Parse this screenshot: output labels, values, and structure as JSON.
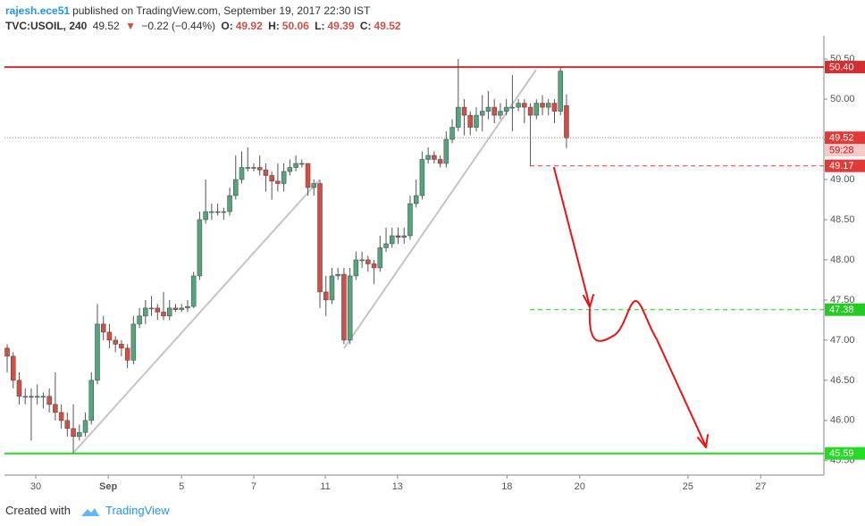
{
  "header": {
    "author": "rajesh.ece51",
    "published": "published on TradingView.com, September 19, 2017 22:30 IST",
    "symbol": "TVC:USOIL, 240",
    "direction": "▼",
    "change": "−0.22 (−0.44%)",
    "o_label": "O:",
    "h_label": "H:",
    "l_label": "L:",
    "c_label": "C:"
  },
  "footer": {
    "created": "Created with",
    "brand": "TradingView"
  },
  "chart_data": {
    "type": "candlestick",
    "x": [
      0,
      1,
      2,
      3,
      4,
      5,
      6,
      7,
      8,
      9,
      10,
      11,
      12,
      13,
      14,
      15,
      16,
      17,
      18,
      19,
      20,
      21,
      22,
      23,
      24,
      25,
      26,
      27,
      28,
      29,
      30,
      31,
      32,
      33,
      34,
      35,
      36,
      37,
      38,
      39,
      40,
      41,
      42,
      43,
      44,
      45,
      46,
      47,
      48,
      49,
      50,
      51,
      52,
      53,
      54,
      55,
      56,
      57,
      58,
      59,
      60,
      61,
      62,
      63,
      64,
      65,
      66,
      67,
      68,
      69,
      70,
      71,
      72,
      73,
      74,
      75,
      76,
      77,
      78,
      79,
      80,
      81,
      82,
      83,
      84,
      85,
      86,
      87,
      88,
      89,
      90,
      91,
      92,
      93
    ],
    "series": [
      {
        "name": "TVC:USOIL, 240",
        "up_color": "#53a57d",
        "down_color": "#d24f45",
        "open": [
          46.9,
          46.8,
          46.5,
          46.3,
          46.3,
          46.3,
          46.3,
          46.3,
          46.2,
          46.1,
          46.0,
          45.9,
          45.8,
          45.85,
          46.0,
          46.5,
          47.2,
          47.1,
          47.0,
          46.95,
          46.9,
          46.75,
          47.2,
          47.3,
          47.4,
          47.4,
          47.35,
          47.3,
          47.4,
          47.38,
          47.4,
          47.42,
          47.8,
          48.5,
          48.6,
          48.6,
          48.6,
          48.6,
          48.8,
          49.0,
          49.15,
          49.15,
          49.15,
          49.12,
          49.05,
          48.98,
          48.95,
          49.1,
          49.15,
          49.2,
          49.2,
          48.9,
          48.95,
          47.6,
          47.5,
          47.8,
          47.82,
          47.0,
          47.8,
          48.0,
          48.0,
          47.95,
          47.9,
          48.15,
          48.2,
          48.3,
          48.28,
          48.3,
          48.7,
          48.8,
          49.25,
          49.3,
          49.25,
          49.2,
          49.5,
          49.65,
          49.9,
          49.8,
          49.65,
          49.8,
          49.85,
          49.9,
          49.8,
          49.85,
          49.9,
          49.9,
          49.95,
          49.9,
          49.8,
          49.95,
          49.9,
          49.95,
          49.85,
          49.92
        ],
        "high": [
          46.95,
          46.85,
          46.6,
          46.4,
          46.4,
          46.45,
          46.35,
          46.4,
          46.6,
          46.2,
          46.1,
          46.2,
          45.95,
          46.1,
          46.6,
          47.45,
          47.3,
          47.2,
          47.05,
          47.0,
          46.95,
          47.3,
          47.4,
          47.5,
          47.55,
          47.45,
          47.6,
          47.5,
          47.45,
          47.45,
          47.5,
          47.85,
          48.6,
          49.0,
          48.7,
          48.7,
          48.65,
          48.9,
          49.3,
          49.35,
          49.4,
          49.2,
          49.3,
          49.2,
          49.1,
          49.2,
          49.2,
          49.25,
          49.3,
          49.25,
          49.2,
          49.0,
          49.0,
          47.8,
          47.9,
          47.9,
          47.9,
          47.9,
          48.1,
          48.1,
          48.05,
          48.0,
          48.3,
          48.4,
          48.4,
          48.4,
          48.4,
          48.8,
          49.0,
          49.35,
          49.4,
          49.35,
          49.3,
          49.6,
          49.75,
          50.5,
          50.0,
          49.85,
          49.9,
          50.05,
          50.1,
          50.0,
          49.95,
          50.0,
          50.3,
          50.0,
          50.0,
          49.95,
          50.0,
          50.05,
          50.0,
          50.0,
          50.4,
          50.06
        ],
        "low": [
          46.6,
          46.4,
          46.2,
          46.2,
          45.75,
          46.2,
          46.15,
          46.1,
          46.0,
          45.9,
          45.8,
          45.59,
          45.75,
          45.8,
          45.95,
          46.45,
          47.0,
          46.9,
          46.85,
          46.8,
          46.65,
          46.7,
          47.15,
          47.2,
          47.3,
          47.25,
          47.25,
          47.25,
          47.35,
          47.35,
          47.35,
          47.4,
          47.75,
          48.45,
          48.5,
          48.55,
          48.5,
          48.55,
          48.75,
          48.95,
          49.1,
          49.1,
          49.05,
          48.85,
          48.75,
          48.85,
          48.85,
          49.05,
          49.1,
          49.15,
          48.8,
          48.8,
          47.4,
          47.3,
          47.45,
          47.75,
          46.95,
          46.95,
          47.75,
          47.9,
          47.85,
          47.7,
          47.85,
          48.1,
          48.15,
          48.2,
          48.2,
          48.25,
          48.65,
          48.75,
          49.2,
          49.2,
          49.15,
          49.15,
          49.45,
          49.6,
          49.55,
          49.55,
          49.6,
          49.6,
          49.75,
          49.7,
          49.75,
          49.8,
          49.6,
          49.85,
          49.7,
          49.17,
          49.75,
          49.8,
          49.8,
          49.7,
          49.8,
          49.39
        ],
        "close": [
          46.8,
          46.5,
          46.3,
          46.3,
          46.3,
          46.3,
          46.3,
          46.2,
          46.1,
          46.0,
          45.9,
          45.8,
          45.85,
          46.0,
          46.5,
          47.2,
          47.1,
          47.0,
          46.95,
          46.9,
          46.75,
          47.2,
          47.3,
          47.4,
          47.4,
          47.35,
          47.3,
          47.4,
          47.38,
          47.4,
          47.42,
          47.8,
          48.5,
          48.6,
          48.6,
          48.6,
          48.6,
          48.8,
          49.0,
          49.15,
          49.15,
          49.15,
          49.12,
          49.05,
          48.98,
          48.95,
          49.1,
          49.15,
          49.2,
          49.2,
          48.9,
          48.95,
          47.6,
          47.5,
          47.8,
          47.82,
          47.0,
          47.8,
          48.0,
          48.0,
          47.95,
          47.9,
          48.15,
          48.2,
          48.3,
          48.28,
          48.3,
          48.7,
          48.8,
          49.25,
          49.3,
          49.25,
          49.2,
          49.5,
          49.65,
          49.9,
          49.8,
          49.65,
          49.8,
          49.85,
          49.9,
          49.8,
          49.85,
          49.9,
          49.9,
          49.95,
          49.9,
          49.8,
          49.95,
          49.9,
          49.95,
          49.85,
          50.35,
          49.52
        ]
      }
    ],
    "xlim": [
      -0.45,
      135.8
    ],
    "xticks": [
      {
        "value": 4.75,
        "label": "30"
      },
      {
        "value": 16.8,
        "label": "Sep"
      },
      {
        "value": 29.0,
        "label": "5"
      },
      {
        "value": 41.0,
        "label": "7"
      },
      {
        "value": 52.9,
        "label": "11"
      },
      {
        "value": 64.9,
        "label": "13"
      },
      {
        "value": 83.1,
        "label": "18"
      },
      {
        "value": 95.2,
        "label": "20"
      },
      {
        "value": 113.2,
        "label": "25"
      },
      {
        "value": 125.3,
        "label": "27"
      }
    ],
    "ylim": [
      45.32,
      50.59
    ],
    "yticks": [
      {
        "value": 45.5,
        "label": "45.50"
      },
      {
        "value": 46,
        "label": "46.00"
      },
      {
        "value": 46.5,
        "label": "46.50"
      },
      {
        "value": 47,
        "label": "47.00"
      },
      {
        "value": 47.5,
        "label": "47.50"
      },
      {
        "value": 48,
        "label": "48.00"
      },
      {
        "value": 48.5,
        "label": "48.50"
      },
      {
        "value": 49,
        "label": "49.00"
      },
      {
        "value": 49.5,
        "label": "49.50"
      },
      {
        "value": 50,
        "label": "50.00"
      },
      {
        "value": 50.5,
        "label": "50.50"
      }
    ],
    "grid": false,
    "levels": [
      {
        "value": 50.4,
        "label": "50.40",
        "color": "#d32f2f",
        "style": "solid"
      },
      {
        "value": 49.17,
        "label": "49.17",
        "color": "#e53935",
        "style": "dashed"
      },
      {
        "value": 47.38,
        "label": "47.38",
        "color": "#22cc22",
        "style": "dashed"
      },
      {
        "value": 45.59,
        "label": "45.59",
        "color": "#22dd22",
        "style": "solid"
      }
    ],
    "last_price_color": "#e57373",
    "countdown": "59:28"
  }
}
